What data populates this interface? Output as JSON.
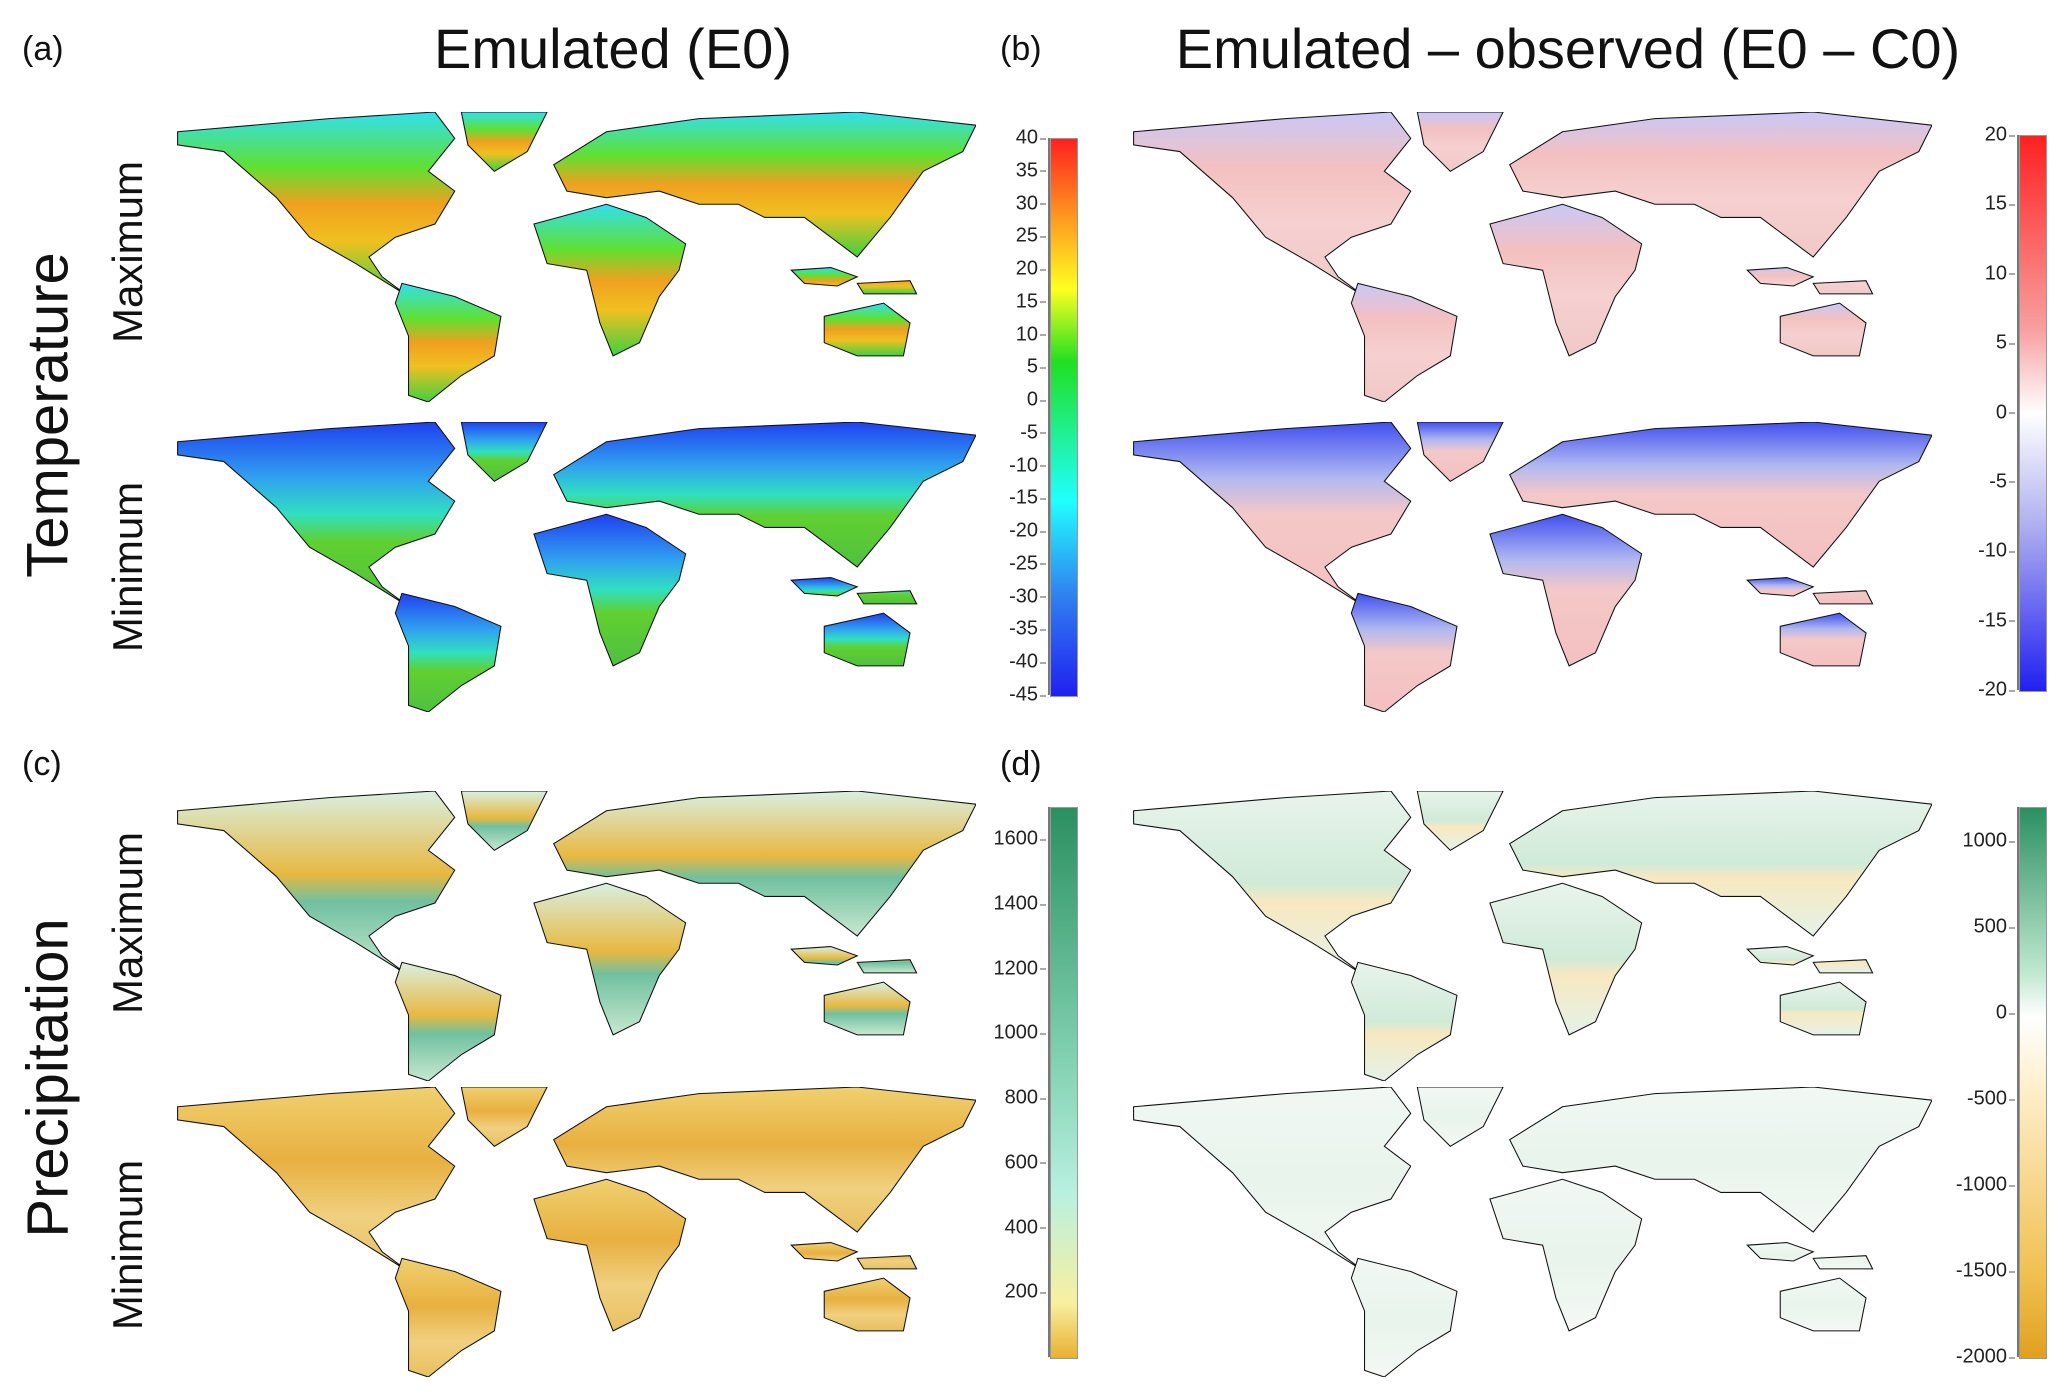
{
  "panels": {
    "a": {
      "label": "(a)",
      "title": "Emulated (E0)"
    },
    "b": {
      "label": "(b)",
      "title": "Emulated – observed (E0 – C0)"
    },
    "c": {
      "label": "(c)"
    },
    "d": {
      "label": "(d)"
    }
  },
  "row_labels": {
    "temperature": "Temperature",
    "precipitation": "Precipitation",
    "maximum": "Maximum",
    "minimum": "Minimum"
  },
  "chart_data": [
    {
      "type": "heatmap",
      "panel": "a",
      "variable": "Temperature",
      "maps": [
        "Maximum",
        "Minimum"
      ],
      "colorbar": {
        "range": [
          -45,
          40
        ],
        "ticks": [
          "40",
          "35",
          "30",
          "25",
          "20",
          "15",
          "10",
          "5",
          "0",
          "-5",
          "-10",
          "-15",
          "-20",
          "-25",
          "-30",
          "-35",
          "-40",
          "-45"
        ],
        "colormap": "rainbow blue-cyan-green-yellow-red"
      }
    },
    {
      "type": "heatmap",
      "panel": "b",
      "variable": "Temperature difference",
      "maps": [
        "Maximum",
        "Minimum"
      ],
      "colorbar": {
        "range": [
          -20,
          20
        ],
        "ticks": [
          "20",
          "15",
          "10",
          "5",
          "0",
          "-5",
          "-10",
          "-15",
          "-20"
        ],
        "colormap": "blue-white-red"
      }
    },
    {
      "type": "heatmap",
      "panel": "c",
      "variable": "Precipitation",
      "maps": [
        "Maximum",
        "Minimum"
      ],
      "colorbar": {
        "range": [
          0,
          1700
        ],
        "ticks": [
          "1600",
          "1400",
          "1200",
          "1000",
          "800",
          "600",
          "400",
          "200"
        ],
        "colormap": "yellow-cyan-green"
      }
    },
    {
      "type": "heatmap",
      "panel": "d",
      "variable": "Precipitation difference",
      "maps": [
        "Maximum",
        "Minimum"
      ],
      "colorbar": {
        "range": [
          -2000,
          1200
        ],
        "ticks": [
          "1000",
          "500",
          "0",
          "-500",
          "-1000",
          "-1500",
          "-2000"
        ],
        "colormap": "orange-white-green"
      }
    }
  ]
}
